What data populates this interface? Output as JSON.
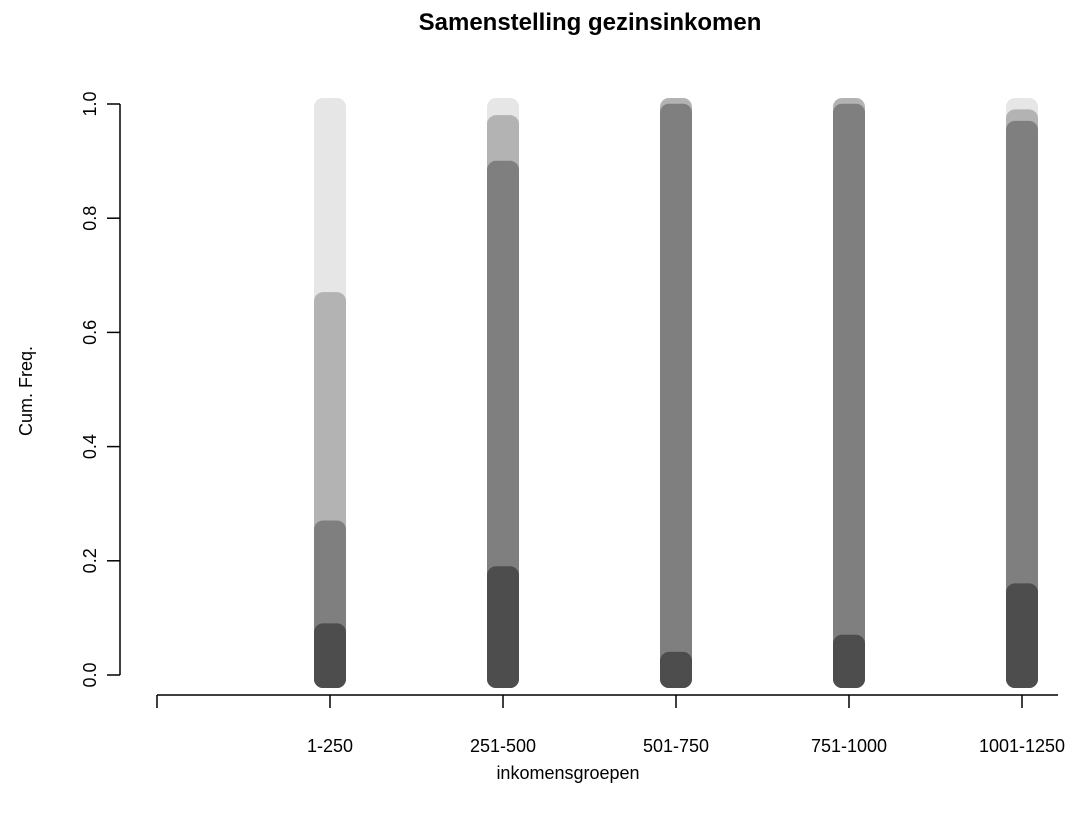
{
  "chart_data": {
    "type": "bar",
    "title": "Samenstelling gezinsinkomen",
    "xlabel": "inkomensgroepen",
    "ylabel": "Cum. Freq.",
    "ylim": [
      0,
      1
    ],
    "yticks": [
      "0.0",
      "0.2",
      "0.4",
      "0.6",
      "0.8",
      "1.0"
    ],
    "categories": [
      "1-250",
      "251-500",
      "501-750",
      "751-1000",
      "1001-1250"
    ],
    "grid": false,
    "legend": "none",
    "stacked": true,
    "segment_colors": [
      "#4d4d4d",
      "#7f7f7f",
      "#b3b3b3",
      "#e6e6e6"
    ],
    "series": [
      {
        "values": [
          0.08,
          0.18,
          0.03,
          0.06,
          0.15
        ]
      },
      {
        "values": [
          0.18,
          0.71,
          0.96,
          0.93,
          0.81
        ]
      },
      {
        "values": [
          0.4,
          0.08,
          0.01,
          0.01,
          0.02
        ]
      },
      {
        "values": [
          0.34,
          0.03,
          0.0,
          0.0,
          0.02
        ]
      }
    ]
  }
}
